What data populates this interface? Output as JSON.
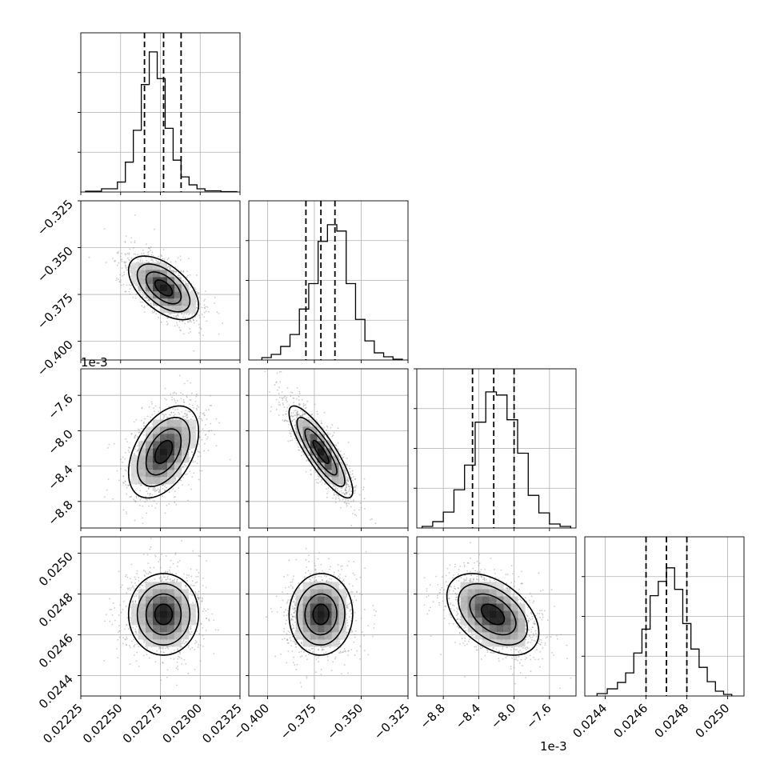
{
  "chart_data": {
    "type": "corner",
    "parameters": 4,
    "grid": true,
    "quantiles": [
      0.16,
      0.5,
      0.84
    ],
    "offset_texts": [
      "1e-3",
      "1e-3"
    ],
    "axes": [
      {
        "range": [
          0.02225,
          0.02325
        ],
        "ticks": [
          0.02225,
          0.0225,
          0.02275,
          0.023,
          0.02325
        ],
        "tick_labels": [
          "0.02225",
          "0.02250",
          "0.02275",
          "0.02300",
          "0.02325"
        ]
      },
      {
        "range": [
          -0.41,
          -0.325
        ],
        "ticks": [
          -0.4,
          -0.375,
          -0.35,
          -0.325
        ],
        "tick_labels": [
          "−0.400",
          "−0.375",
          "−0.350",
          "−0.325"
        ]
      },
      {
        "range": [
          -9.1,
          -7.3
        ],
        "ticks": [
          -8.8,
          -8.4,
          -8.0,
          -7.6
        ],
        "tick_labels": [
          "−8.8",
          "−8.4",
          "−8.0",
          "−7.6"
        ]
      },
      {
        "range": [
          0.0243,
          0.02508
        ],
        "ticks": [
          0.0244,
          0.0246,
          0.0248,
          0.025
        ],
        "tick_labels": [
          "0.0244",
          "0.0246",
          "0.0248",
          "0.0250"
        ]
      }
    ],
    "marginals": [
      {
        "param": 0,
        "bins": [
          0.02228,
          0.02238,
          0.02248,
          0.02253,
          0.02258,
          0.02263,
          0.02268,
          0.02273,
          0.02278,
          0.02283,
          0.02288,
          0.02293,
          0.02298,
          0.02303,
          0.02313,
          0.02323
        ],
        "counts": [
          2,
          8,
          25,
          75,
          155,
          270,
          352,
          285,
          160,
          80,
          38,
          18,
          8,
          3,
          1
        ],
        "quantile_values": [
          0.02265,
          0.02277,
          0.02288
        ],
        "hist_ymax": 400,
        "ytick_values": [
          100,
          200,
          300
        ]
      },
      {
        "param": 1,
        "bins": [
          -0.403,
          -0.398,
          -0.393,
          -0.388,
          -0.383,
          -0.378,
          -0.373,
          -0.368,
          -0.363,
          -0.358,
          -0.353,
          -0.348,
          -0.343,
          -0.338,
          -0.333,
          -0.328
        ],
        "counts": [
          6,
          14,
          34,
          64,
          128,
          192,
          298,
          340,
          324,
          192,
          102,
          48,
          18,
          8,
          2
        ],
        "quantile_values": [
          -0.3795,
          -0.3715,
          -0.364
        ],
        "hist_ymax": 400,
        "ytick_values": [
          100,
          200,
          300
        ]
      },
      {
        "param": 2,
        "bins": [
          -9.04,
          -8.92,
          -8.8,
          -8.68,
          -8.56,
          -8.44,
          -8.32,
          -8.2,
          -8.08,
          -7.96,
          -7.84,
          -7.72,
          -7.6,
          -7.48,
          -7.36
        ],
        "counts": [
          4,
          16,
          40,
          96,
          158,
          266,
          342,
          334,
          272,
          188,
          82,
          38,
          10,
          4
        ],
        "quantile_values": [
          -8.47,
          -8.23,
          -8.0
        ],
        "hist_ymax": 400,
        "ytick_values": [
          100,
          200,
          300,
          400
        ]
      },
      {
        "param": 3,
        "bins": [
          0.02436,
          0.02441,
          0.02446,
          0.0245,
          0.02454,
          0.02458,
          0.02462,
          0.02466,
          0.0247,
          0.02474,
          0.02478,
          0.02482,
          0.02486,
          0.0249,
          0.02494,
          0.02498,
          0.02502
        ],
        "counts": [
          6,
          18,
          34,
          58,
          108,
          168,
          252,
          288,
          322,
          268,
          182,
          118,
          72,
          36,
          12,
          4
        ],
        "quantile_values": [
          0.0246,
          0.0247,
          0.0248
        ],
        "hist_ymax": 400,
        "ytick_values": [
          100,
          200,
          300
        ]
      }
    ],
    "pairs": [
      {
        "x": 0,
        "y": 1,
        "mean": [
          0.02277,
          -0.3715
        ],
        "sd": [
          0.00011,
          0.0085
        ],
        "rho": -0.55
      },
      {
        "x": 0,
        "y": 2,
        "mean": [
          0.02277,
          -8.24
        ],
        "sd": [
          0.00011,
          0.26
        ],
        "rho": 0.45
      },
      {
        "x": 1,
        "y": 2,
        "mean": [
          -0.3715,
          -8.24
        ],
        "sd": [
          0.0085,
          0.26
        ],
        "rho": -0.85
      },
      {
        "x": 0,
        "y": 3,
        "mean": [
          0.02277,
          0.0247
        ],
        "sd": [
          0.00011,
          0.0001
        ],
        "rho": 0.0
      },
      {
        "x": 1,
        "y": 3,
        "mean": [
          -0.3715,
          0.0247
        ],
        "sd": [
          0.0085,
          0.0001
        ],
        "rho": 0.02
      },
      {
        "x": 2,
        "y": 3,
        "mean": [
          -8.24,
          0.0247
        ],
        "sd": [
          0.26,
          0.0001
        ],
        "rho": -0.45
      }
    ],
    "contour_levels_sigma": [
      0.5,
      1.0,
      1.5,
      2.0
    ]
  }
}
